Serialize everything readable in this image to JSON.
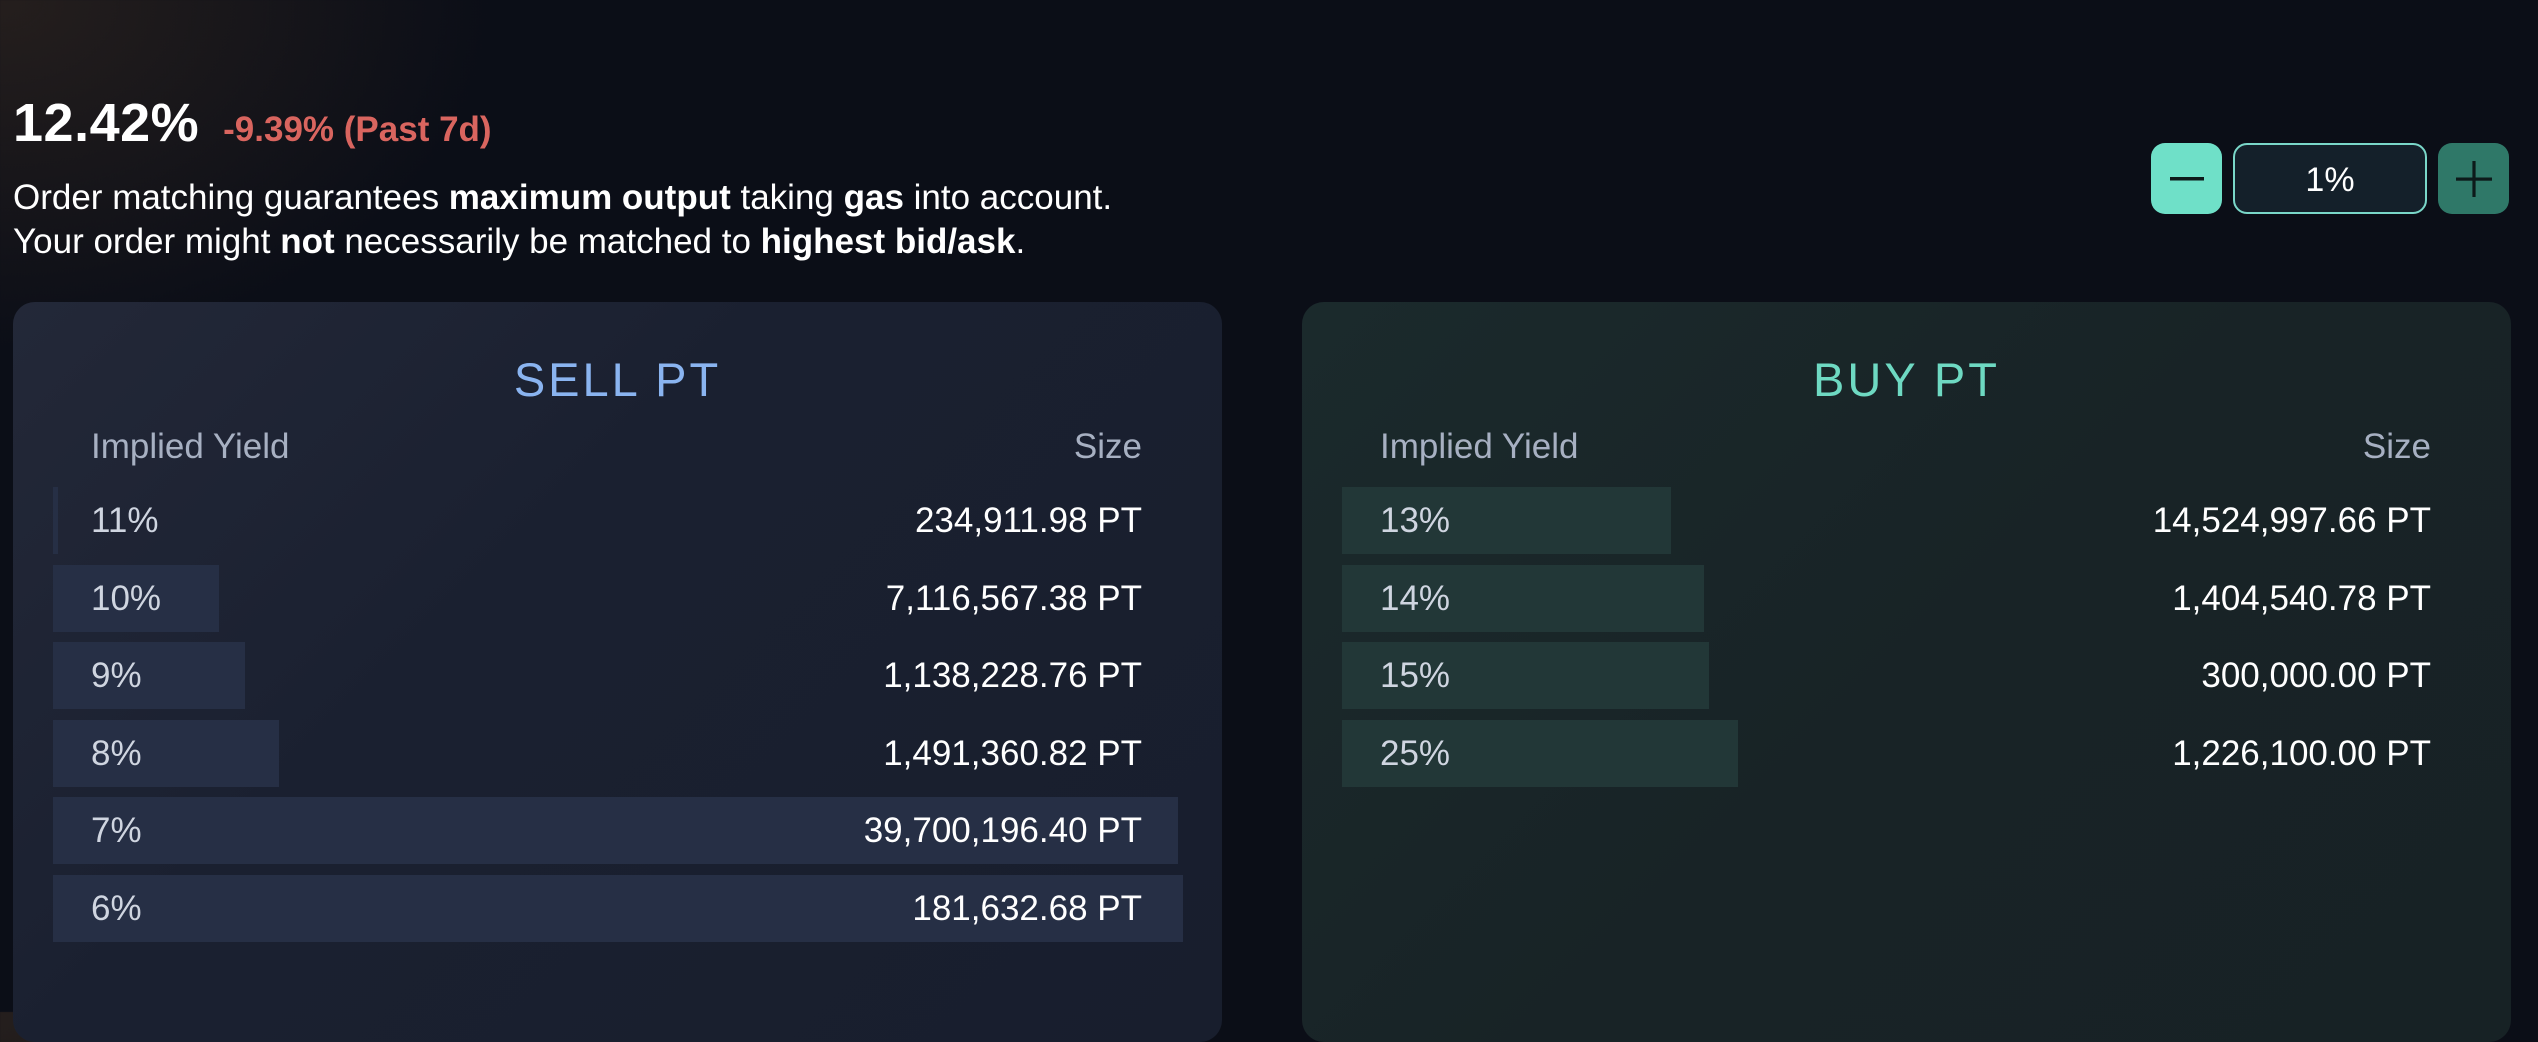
{
  "header": {
    "implied_yield": "12.42%",
    "change": "-9.39% (Past 7d)"
  },
  "notes": {
    "line1": {
      "a": "Order matching guarantees ",
      "b": "maximum output",
      "c": " taking ",
      "d": "gas",
      "e": " into account."
    },
    "line2": {
      "a": "Your order might ",
      "b": "not",
      "c": " necessarily be matched to ",
      "d": "highest bid/ask",
      "e": "."
    }
  },
  "stepper": {
    "value": "1%",
    "minus_icon": "minus-icon",
    "plus_icon": "plus-icon"
  },
  "colors": {
    "sell_accent": "#8ab4f0",
    "buy_accent": "#6ed9c2",
    "negative": "#d9655f"
  },
  "sell": {
    "title": "SELL PT",
    "col_yield": "Implied Yield",
    "col_size": "Size",
    "rows": [
      {
        "yield": "11%",
        "size": "234,911.98 PT",
        "depth": 0.004
      },
      {
        "yield": "10%",
        "size": "7,116,567.38 PT",
        "depth": 0.147
      },
      {
        "yield": "9%",
        "size": "1,138,228.76 PT",
        "depth": 0.17
      },
      {
        "yield": "8%",
        "size": "1,491,360.82 PT",
        "depth": 0.2
      },
      {
        "yield": "7%",
        "size": "39,700,196.40 PT",
        "depth": 0.996
      },
      {
        "yield": "6%",
        "size": "181,632.68 PT",
        "depth": 1.0
      }
    ]
  },
  "buy": {
    "title": "BUY PT",
    "col_yield": "Implied Yield",
    "col_size": "Size",
    "rows": [
      {
        "yield": "13%",
        "size": "14,524,997.66 PT",
        "depth": 0.291
      },
      {
        "yield": "14%",
        "size": "1,404,540.78 PT",
        "depth": 0.32
      },
      {
        "yield": "15%",
        "size": "300,000.00 PT",
        "depth": 0.325
      },
      {
        "yield": "25%",
        "size": "1,226,100.00 PT",
        "depth": 0.35
      }
    ]
  }
}
